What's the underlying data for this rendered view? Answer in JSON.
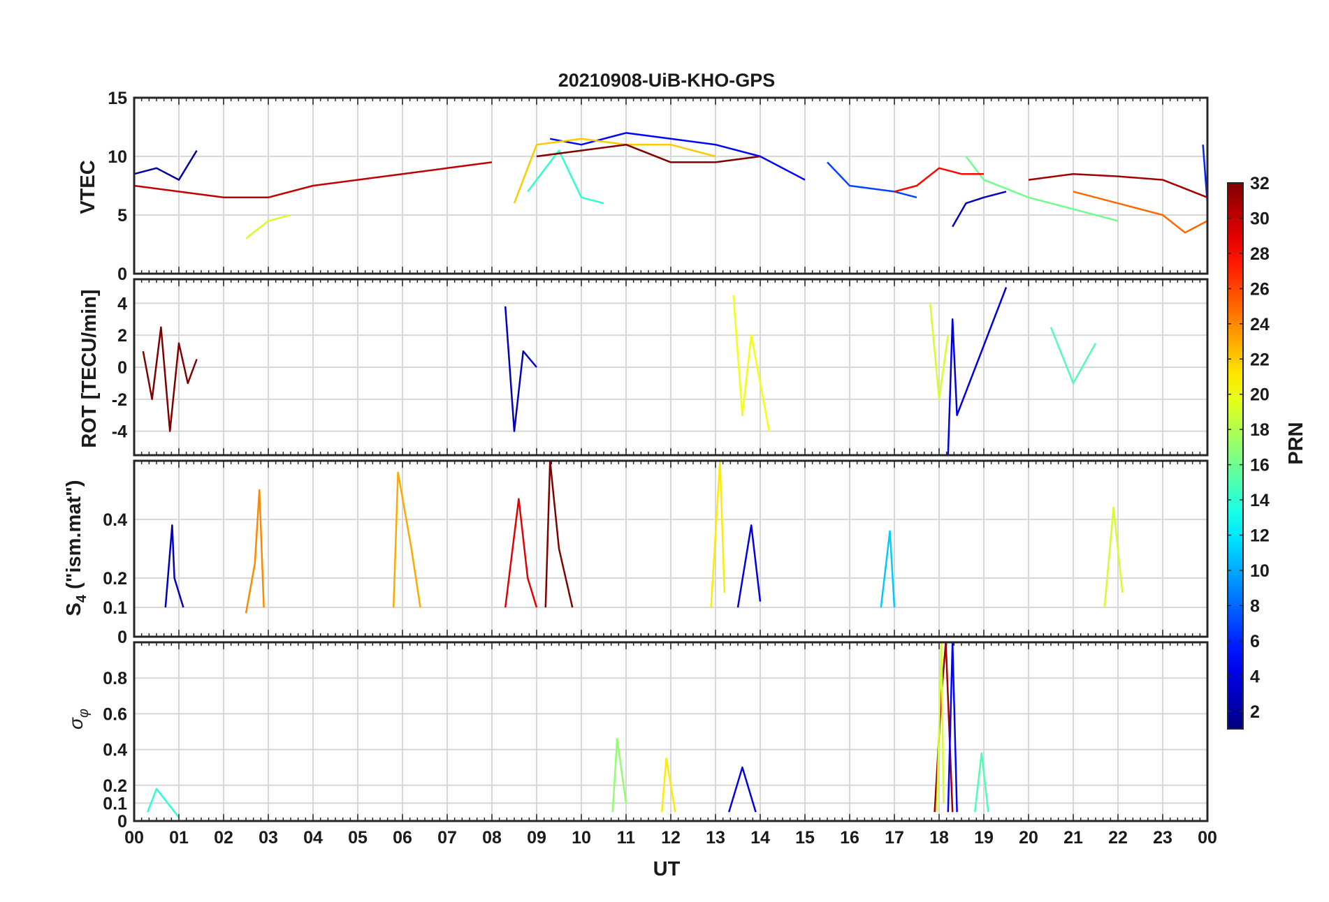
{
  "figure": {
    "title": "20210908-UiB-KHO-GPS",
    "xlabel": "UT",
    "x_tick_labels": [
      "00",
      "01",
      "02",
      "03",
      "04",
      "05",
      "06",
      "07",
      "08",
      "09",
      "10",
      "11",
      "12",
      "13",
      "14",
      "15",
      "16",
      "17",
      "18",
      "19",
      "20",
      "21",
      "22",
      "23",
      "00"
    ]
  },
  "colorbar": {
    "label": "PRN",
    "colormap": "jet",
    "range": [
      1,
      32
    ],
    "tick_labels": [
      "2",
      "4",
      "6",
      "8",
      "10",
      "12",
      "14",
      "16",
      "18",
      "20",
      "22",
      "24",
      "26",
      "28",
      "30",
      "32"
    ]
  },
  "chart_data": [
    {
      "type": "line",
      "panel": "VTEC",
      "ylabel": "VTEC",
      "xlim": [
        0,
        24
      ],
      "ylim": [
        0,
        15
      ],
      "y_tick_labels": [
        "0",
        "5",
        "10",
        "15"
      ],
      "grid": true,
      "series": [
        {
          "prn": 2,
          "x": [
            0,
            0.5,
            1,
            1.4
          ],
          "y": [
            8.5,
            9,
            8,
            10.5
          ]
        },
        {
          "prn": 5,
          "x": [
            9.3,
            10,
            11,
            12,
            13,
            14,
            15
          ],
          "y": [
            11.5,
            11,
            12,
            11.5,
            11,
            10,
            8
          ]
        },
        {
          "prn": 7,
          "x": [
            15.5,
            16,
            17,
            17.5
          ],
          "y": [
            9.5,
            7.5,
            7,
            6.5
          ]
        },
        {
          "prn": 3,
          "x": [
            18.3,
            18.6,
            19,
            19.5
          ],
          "y": [
            4,
            6,
            6.5,
            7
          ]
        },
        {
          "prn": 6,
          "x": [
            23.9,
            24
          ],
          "y": [
            11,
            6
          ]
        },
        {
          "prn": 19,
          "x": [
            2.5,
            3,
            3.5
          ],
          "y": [
            3,
            4.5,
            5
          ]
        },
        {
          "prn": 22,
          "x": [
            8.5,
            9,
            10,
            11,
            12,
            13
          ],
          "y": [
            6,
            11,
            11.5,
            11,
            11,
            10
          ]
        },
        {
          "prn": 14,
          "x": [
            8.8,
            9.5,
            10,
            10.5
          ],
          "y": [
            7,
            10.5,
            6.5,
            6
          ]
        },
        {
          "prn": 16,
          "x": [
            18.6,
            19,
            20,
            21,
            22
          ],
          "y": [
            10,
            8,
            6.5,
            5.5,
            4.5
          ]
        },
        {
          "prn": 25,
          "x": [
            21,
            22,
            23,
            23.5,
            24
          ],
          "y": [
            7,
            6,
            5,
            3.5,
            4.5
          ]
        },
        {
          "prn": 30,
          "x": [
            0,
            1,
            2,
            3,
            4,
            5,
            6,
            7,
            8
          ],
          "y": [
            7.5,
            7,
            6.5,
            6.5,
            7.5,
            8,
            8.5,
            9,
            9.5
          ]
        },
        {
          "prn": 32,
          "x": [
            9,
            10,
            11,
            12,
            13,
            14
          ],
          "y": [
            10,
            10.5,
            11,
            9.5,
            9.5,
            10
          ]
        },
        {
          "prn": 31,
          "x": [
            20,
            21,
            22,
            23,
            24
          ],
          "y": [
            8,
            8.5,
            8.3,
            8,
            6.5
          ]
        },
        {
          "prn": 28,
          "x": [
            17,
            17.5,
            18,
            18.5,
            19
          ],
          "y": [
            7,
            7.5,
            9,
            8.5,
            8.5
          ]
        }
      ]
    },
    {
      "type": "line",
      "panel": "ROT",
      "ylabel": "ROT [TECU/min]",
      "xlim": [
        0,
        24
      ],
      "ylim": [
        -5.5,
        5.5
      ],
      "y_tick_labels": [
        "-4",
        "-2",
        "0",
        "2",
        "4"
      ],
      "grid": true,
      "series": [
        {
          "prn": 32,
          "x": [
            0.2,
            0.4,
            0.6,
            0.8,
            1,
            1.2,
            1.4
          ],
          "y": [
            1,
            -2,
            2.5,
            -4,
            1.5,
            -1,
            0.5
          ]
        },
        {
          "prn": 3,
          "x": [
            8.3,
            8.5,
            8.7,
            9
          ],
          "y": [
            3.8,
            -4,
            1,
            0
          ]
        },
        {
          "prn": 20,
          "x": [
            13.4,
            13.6,
            13.8,
            14.2
          ],
          "y": [
            4.5,
            -3,
            2,
            -4
          ]
        },
        {
          "prn": 4,
          "x": [
            18.2,
            18.3,
            18.4,
            19.5
          ],
          "y": [
            -5.5,
            3,
            -3,
            5
          ]
        },
        {
          "prn": 19,
          "x": [
            17.8,
            18,
            18.2
          ],
          "y": [
            4,
            -2,
            2
          ]
        },
        {
          "prn": 15,
          "x": [
            20.5,
            21,
            21.5
          ],
          "y": [
            2.5,
            -1,
            1.5
          ]
        }
      ]
    },
    {
      "type": "line",
      "panel": "S4",
      "ylabel": "S4 (\"ism.mat\")",
      "ylabel_main": "S",
      "ylabel_sub": "4",
      "ylabel_rest": " (\"ism.mat\")",
      "xlim": [
        0,
        24
      ],
      "ylim": [
        0,
        0.6
      ],
      "y_tick_labels": [
        "0",
        "0.1",
        "0.2",
        "0.4"
      ],
      "grid": true,
      "series": [
        {
          "prn": 3,
          "x": [
            0.7,
            0.85,
            0.9,
            1.1
          ],
          "y": [
            0.1,
            0.38,
            0.2,
            0.1
          ]
        },
        {
          "prn": 24,
          "x": [
            2.5,
            2.7,
            2.8,
            2.9
          ],
          "y": [
            0.08,
            0.25,
            0.5,
            0.1
          ]
        },
        {
          "prn": 23,
          "x": [
            5.8,
            5.9,
            6.2,
            6.4
          ],
          "y": [
            0.1,
            0.56,
            0.3,
            0.1
          ]
        },
        {
          "prn": 29,
          "x": [
            8.3,
            8.6,
            8.8,
            9
          ],
          "y": [
            0.1,
            0.47,
            0.2,
            0.1
          ]
        },
        {
          "prn": 32,
          "x": [
            9.2,
            9.3,
            9.5,
            9.8
          ],
          "y": [
            0.1,
            0.6,
            0.3,
            0.1
          ]
        },
        {
          "prn": 21,
          "x": [
            12.9,
            13.1,
            13.2
          ],
          "y": [
            0.1,
            0.6,
            0.15
          ]
        },
        {
          "prn": 4,
          "x": [
            13.5,
            13.8,
            14
          ],
          "y": [
            0.1,
            0.38,
            0.12
          ]
        },
        {
          "prn": 11,
          "x": [
            16.7,
            16.9,
            17
          ],
          "y": [
            0.1,
            0.36,
            0.1
          ]
        },
        {
          "prn": 19,
          "x": [
            21.7,
            21.9,
            22.1
          ],
          "y": [
            0.1,
            0.44,
            0.15
          ]
        }
      ]
    },
    {
      "type": "line",
      "panel": "sigma_phi",
      "ylabel": "σφ",
      "ylabel_main": "σ",
      "ylabel_sub": "φ",
      "xlim": [
        0,
        24
      ],
      "ylim": [
        0,
        1
      ],
      "y_tick_labels": [
        "0",
        "0.1",
        "0.2",
        "0.4",
        "0.6",
        "0.8"
      ],
      "grid": true,
      "series": [
        {
          "prn": 14,
          "x": [
            0.3,
            0.5,
            1
          ],
          "y": [
            0.05,
            0.18,
            0.02
          ]
        },
        {
          "prn": 17,
          "x": [
            10.7,
            10.8,
            11
          ],
          "y": [
            0.05,
            0.46,
            0.1
          ]
        },
        {
          "prn": 21,
          "x": [
            11.8,
            11.9,
            12.1
          ],
          "y": [
            0.05,
            0.35,
            0.05
          ]
        },
        {
          "prn": 4,
          "x": [
            13.3,
            13.6,
            13.9
          ],
          "y": [
            0.05,
            0.3,
            0.05
          ]
        },
        {
          "prn": 31,
          "x": [
            17.9,
            18.05,
            18.15,
            18.3
          ],
          "y": [
            0.05,
            0.7,
            1,
            0.05
          ]
        },
        {
          "prn": 19,
          "x": [
            17.95,
            18.05,
            18.1
          ],
          "y": [
            0.05,
            1,
            0.1
          ]
        },
        {
          "prn": 5,
          "x": [
            18.2,
            18.3,
            18.4
          ],
          "y": [
            0.05,
            1,
            0.05
          ]
        },
        {
          "prn": 15,
          "x": [
            18.8,
            18.95,
            19.1
          ],
          "y": [
            0.05,
            0.38,
            0.05
          ]
        }
      ]
    }
  ]
}
